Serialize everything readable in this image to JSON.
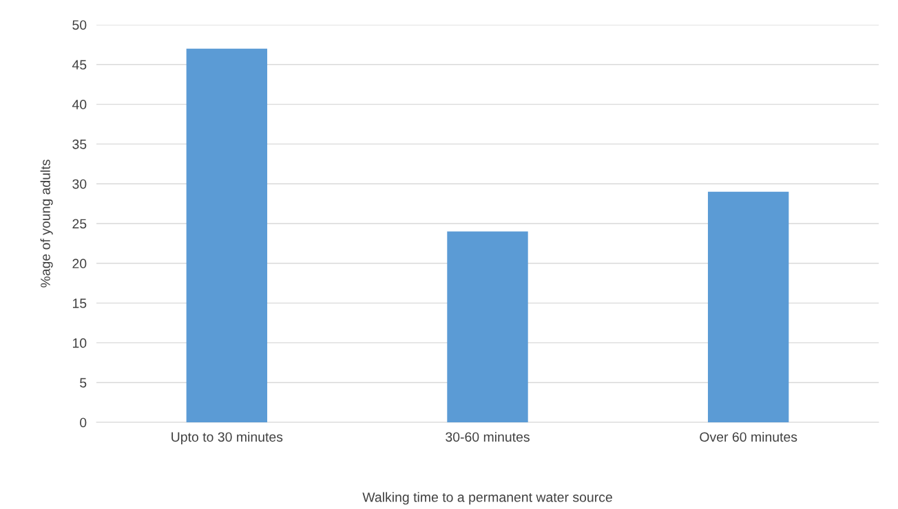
{
  "chart_data": {
    "type": "bar",
    "xlabel": "Walking time to a permanent water source",
    "ylabel": "%age of young adults",
    "categories": [
      "Upto to 30 minutes",
      "30-60 minutes",
      "Over 60 minutes"
    ],
    "values": [
      47,
      24,
      29
    ],
    "color": "#5b9bd5",
    "ylim": [
      0,
      50
    ],
    "yticks": [
      0,
      5,
      10,
      15,
      20,
      25,
      30,
      35,
      40,
      45,
      50
    ],
    "grid": "y",
    "legend": false
  }
}
